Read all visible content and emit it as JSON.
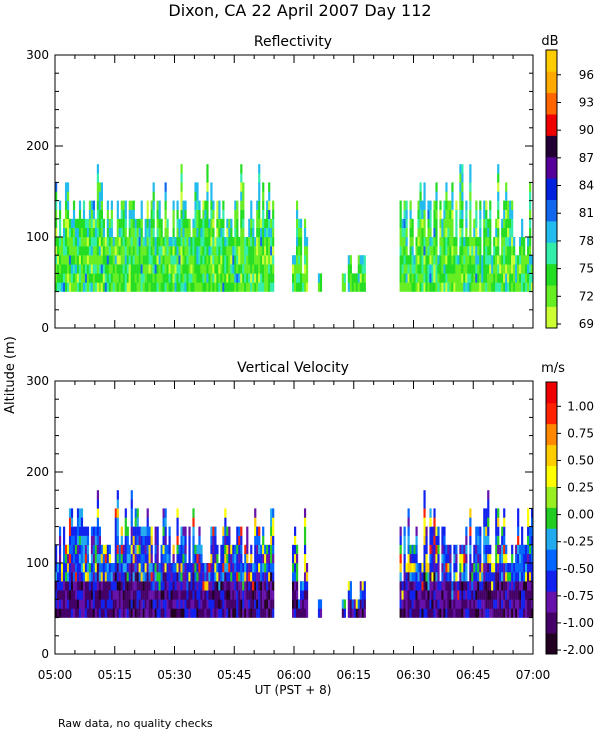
{
  "title": "Dixon, CA 22 April 2007  Day 112",
  "y_axis_label": "Altitude (m)",
  "x_axis_label": "UT  (PST + 8)",
  "footnote": "Raw data, no quality checks",
  "chart_data": [
    {
      "type": "heatmap",
      "title": "Reflectivity",
      "xlabel": "UT  (PST + 8)",
      "ylabel": "Altitude (m)",
      "xlim": [
        0,
        120
      ],
      "ylim": [
        0,
        300
      ],
      "x_tick_values": [
        0,
        15,
        30,
        45,
        60,
        75,
        90,
        105,
        120
      ],
      "x_tick_labels": [
        "05:00",
        "05:15",
        "05:30",
        "05:45",
        "06:00",
        "06:15",
        "06:30",
        "06:45",
        "07:00"
      ],
      "y_tick_values": [
        0,
        100,
        200,
        300
      ],
      "y_tick_labels": [
        "0",
        "100",
        "200",
        "300"
      ],
      "colorbar": {
        "unit": "dB",
        "labels": [
          "69",
          "72",
          "75",
          "78",
          "81",
          "84",
          "87",
          "90",
          "93",
          "96"
        ],
        "colors": [
          "#ccff33",
          "#66ee22",
          "#22dd22",
          "#33eeaa",
          "#22bbee",
          "#1166ee",
          "#0022dd",
          "#550099",
          "#220033",
          "#ee0000",
          "#ff6600",
          "#ffaa00",
          "#ffcc00"
        ]
      },
      "segments": [
        {
          "x": [
            0,
            55
          ],
          "base_m": 40,
          "top_m": [
            100,
            160
          ],
          "max_top_m": 180
        },
        {
          "x": [
            59.5,
            63.5
          ],
          "base_m": 40,
          "top_m": [
            60,
            160
          ]
        },
        {
          "x": [
            66,
            67
          ],
          "base_m": 40,
          "top_m": [
            60,
            60
          ]
        },
        {
          "x": [
            72,
            73
          ],
          "base_m": 40,
          "top_m": [
            60,
            60
          ]
        },
        {
          "x": [
            73.5,
            78
          ],
          "base_m": 40,
          "top_m": [
            60,
            80
          ]
        },
        {
          "x": [
            86.5,
            120
          ],
          "base_m": 40,
          "top_m": [
            80,
            160
          ],
          "max_top_m": 180
        }
      ]
    },
    {
      "type": "heatmap",
      "title": "Vertical Velocity",
      "xlabel": "UT  (PST + 8)",
      "ylabel": "Altitude (m)",
      "xlim": [
        0,
        120
      ],
      "ylim": [
        0,
        300
      ],
      "x_tick_values": [
        0,
        15,
        30,
        45,
        60,
        75,
        90,
        105,
        120
      ],
      "x_tick_labels": [
        "05:00",
        "05:15",
        "05:30",
        "05:45",
        "06:00",
        "06:15",
        "06:30",
        "06:45",
        "07:00"
      ],
      "y_tick_values": [
        0,
        100,
        200,
        300
      ],
      "y_tick_labels": [
        "0",
        "100",
        "200",
        "300"
      ],
      "colorbar": {
        "unit": "m/s",
        "labels": [
          "-2.00",
          "-1.00",
          "-0.75",
          "-0.50",
          "-0.25",
          "0.00",
          "0.25",
          "0.50",
          "0.75",
          "1.00"
        ],
        "colors": [
          "#220022",
          "#440066",
          "#6611aa",
          "#1122ee",
          "#0066ff",
          "#22aaee",
          "#22cc22",
          "#99ee22",
          "#ffff00",
          "#ffcc00",
          "#ff8800",
          "#ff2200",
          "#ee0000"
        ]
      },
      "segments": [
        {
          "x": [
            0,
            55
          ],
          "base_m": 40,
          "top_m": [
            100,
            160
          ],
          "max_top_m": 180
        },
        {
          "x": [
            59.5,
            63.5
          ],
          "base_m": 40,
          "top_m": [
            60,
            160
          ]
        },
        {
          "x": [
            66,
            67
          ],
          "base_m": 40,
          "top_m": [
            60,
            60
          ]
        },
        {
          "x": [
            72,
            73
          ],
          "base_m": 40,
          "top_m": [
            60,
            60
          ]
        },
        {
          "x": [
            73.5,
            78
          ],
          "base_m": 40,
          "top_m": [
            60,
            80
          ]
        },
        {
          "x": [
            86.5,
            120
          ],
          "base_m": 40,
          "top_m": [
            80,
            160
          ],
          "max_top_m": 180
        }
      ]
    }
  ]
}
